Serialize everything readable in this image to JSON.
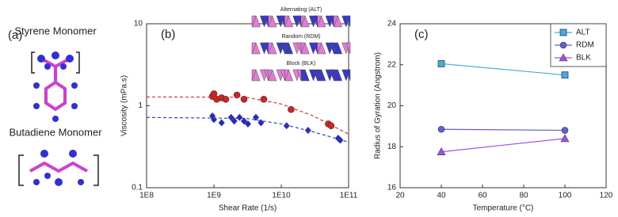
{
  "panel_a": {
    "label": "(a)",
    "molecules": [
      "Styrene Monomer",
      "Butadiene Monomer"
    ]
  },
  "chart_data": [
    {
      "type": "scatter",
      "label": "(b)",
      "xlabel": "Shear Rate (1/s)",
      "ylabel": "Viscosity (mPa.s)",
      "xscale": "log",
      "yscale": "log",
      "xlim": [
        100000000,
        100000000000
      ],
      "ylim": [
        0.1,
        10
      ],
      "xticks": [
        {
          "value": 100000000,
          "label": "1E8"
        },
        {
          "value": 1000000000,
          "label": "1E9"
        },
        {
          "value": 10000000000,
          "label": "1E10"
        },
        {
          "value": 100000000000,
          "label": "1E11"
        }
      ],
      "yticks": [
        0.1,
        1,
        10
      ],
      "insets": [
        "Alternating (ALT)",
        "Random (RDM)",
        "Block (BLK)"
      ],
      "series": [
        {
          "color": "#d42020",
          "marker": "circle",
          "x": [
            950000000,
            1000000000,
            1100000000,
            1300000000,
            1500000000,
            2200000000,
            2800000000,
            5500000000,
            14000000000,
            50000000000,
            55000000000
          ],
          "values": [
            1.3,
            1.4,
            1.2,
            1.25,
            1.2,
            1.35,
            1.2,
            1.2,
            0.9,
            0.6,
            0.57
          ]
        },
        {
          "color": "#2a2ab8",
          "marker": "diamond",
          "x": [
            950000000,
            1000000000,
            1300000000,
            1800000000,
            2000000000,
            2400000000,
            2800000000,
            3200000000,
            4200000000,
            5000000000,
            12000000000,
            25000000000,
            70000000000,
            75000000000
          ],
          "values": [
            0.75,
            0.68,
            0.62,
            0.72,
            0.65,
            0.72,
            0.65,
            0.6,
            0.72,
            0.62,
            0.57,
            0.5,
            0.4,
            0.38
          ]
        },
        {
          "color": "#e03030",
          "marker": "dashed",
          "x": [
            100000000,
            3000000000,
            10000000000,
            30000000000,
            100000000000
          ],
          "values": [
            1.28,
            1.27,
            1.05,
            0.75,
            0.45
          ]
        },
        {
          "color": "#3040d0",
          "marker": "dashed",
          "x": [
            100000000,
            3000000000,
            10000000000,
            30000000000,
            100000000000
          ],
          "values": [
            0.72,
            0.7,
            0.6,
            0.48,
            0.36
          ]
        }
      ]
    },
    {
      "type": "line",
      "label": "(c)",
      "xlabel": "Temperature (°C)",
      "ylabel": "Radius of Gyration (Angstrom)",
      "xlim": [
        20,
        120
      ],
      "ylim": [
        16,
        24
      ],
      "xticks": [
        20,
        40,
        60,
        80,
        100,
        120
      ],
      "yticks": [
        16,
        18,
        20,
        22,
        24
      ],
      "legend": "upper right",
      "x": [
        40,
        100
      ],
      "series": [
        {
          "name": "ALT",
          "color": "#4aa8dc",
          "marker": "square",
          "values": [
            22.05,
            21.5
          ]
        },
        {
          "name": "RDM",
          "color": "#6060d8",
          "marker": "circle",
          "values": [
            18.85,
            18.8
          ]
        },
        {
          "name": "BLK",
          "color": "#a050e0",
          "marker": "triangle",
          "values": [
            17.75,
            18.4
          ]
        }
      ]
    }
  ]
}
